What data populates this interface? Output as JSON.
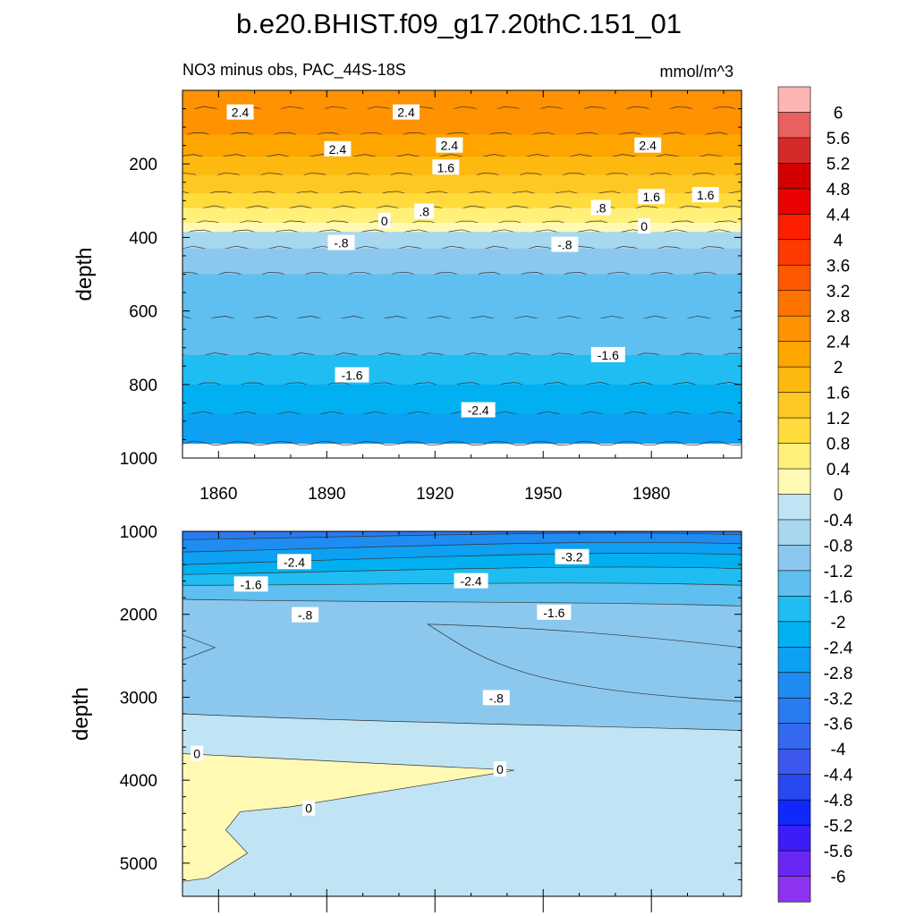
{
  "title": "b.e20.BHIST.f09_g17.20thC.151_01",
  "subtitle_left": "NO3 minus obs, PAC_44S-18S",
  "subtitle_right": "mmol/m^3",
  "chart_data": [
    {
      "type": "heatmap",
      "panel": "upper",
      "xlabel": "",
      "ylabel": "depth",
      "xlim": [
        1850,
        2005
      ],
      "ylim": [
        1000,
        0
      ],
      "x_ticks": [
        "1860",
        "1890",
        "1920",
        "1950",
        "1980"
      ],
      "y_ticks": [
        "200",
        "400",
        "600",
        "800",
        "1000"
      ],
      "bands": [
        {
          "depth": 50,
          "value": 2.6
        },
        {
          "depth": 120,
          "value": 2.4
        },
        {
          "depth": 180,
          "value": 2.2
        },
        {
          "depth": 230,
          "value": 1.8
        },
        {
          "depth": 280,
          "value": 1.4
        },
        {
          "depth": 320,
          "value": 1.0
        },
        {
          "depth": 360,
          "value": 0.6
        },
        {
          "depth": 385,
          "value": 0.2
        },
        {
          "depth": 430,
          "value": -0.6
        },
        {
          "depth": 500,
          "value": -1.0
        },
        {
          "depth": 620,
          "value": -1.3
        },
        {
          "depth": 720,
          "value": -1.6
        },
        {
          "depth": 800,
          "value": -1.9
        },
        {
          "depth": 880,
          "value": -2.2
        },
        {
          "depth": 960,
          "value": -2.6
        }
      ],
      "contour_labels": [
        {
          "text": "2.4",
          "x": 1866,
          "depth": 60
        },
        {
          "text": "2.4",
          "x": 1912,
          "depth": 60
        },
        {
          "text": "2.4",
          "x": 1893,
          "depth": 160
        },
        {
          "text": "2.4",
          "x": 1924,
          "depth": 150
        },
        {
          "text": "2.4",
          "x": 1979,
          "depth": 150
        },
        {
          "text": "1.6",
          "x": 1923,
          "depth": 210
        },
        {
          "text": "1.6",
          "x": 1980,
          "depth": 290
        },
        {
          "text": "1.6",
          "x": 1995,
          "depth": 285
        },
        {
          "text": ".8",
          "x": 1917,
          "depth": 330
        },
        {
          "text": ".8",
          "x": 1966,
          "depth": 320
        },
        {
          "text": "0",
          "x": 1906,
          "depth": 355
        },
        {
          "text": "0",
          "x": 1978,
          "depth": 370
        },
        {
          "text": "-.8",
          "x": 1894,
          "depth": 415
        },
        {
          "text": "-.8",
          "x": 1956,
          "depth": 420
        },
        {
          "text": "-1.6",
          "x": 1968,
          "depth": 720
        },
        {
          "text": "-1.6",
          "x": 1897,
          "depth": 775
        },
        {
          "text": "-2.4",
          "x": 1932,
          "depth": 870
        }
      ]
    },
    {
      "type": "heatmap",
      "panel": "lower",
      "xlabel": "",
      "ylabel": "depth",
      "xlim": [
        1850,
        2005
      ],
      "ylim": [
        5400,
        1000
      ],
      "y_ticks": [
        "1000",
        "2000",
        "3000",
        "4000",
        "5000"
      ],
      "contour_labels": [
        {
          "text": "-2.4",
          "x": 1881,
          "depth": 1370
        },
        {
          "text": "-1.6",
          "x": 1869,
          "depth": 1640
        },
        {
          "text": "-2.4",
          "x": 1930,
          "depth": 1600
        },
        {
          "text": "-3.2",
          "x": 1958,
          "depth": 1310
        },
        {
          "text": "-1.6",
          "x": 1953,
          "depth": 1980
        },
        {
          "text": "-.8",
          "x": 1884,
          "depth": 2010
        },
        {
          "text": "-.8",
          "x": 1937,
          "depth": 3010
        },
        {
          "text": "0",
          "x": 1854,
          "depth": 3680
        },
        {
          "text": "0",
          "x": 1938,
          "depth": 3870
        },
        {
          "text": "0",
          "x": 1885,
          "depth": 4340
        }
      ]
    }
  ],
  "colorbar": {
    "labels": [
      "6",
      "5.6",
      "5.2",
      "4.8",
      "4.4",
      "4",
      "3.6",
      "3.2",
      "2.8",
      "2.4",
      "2",
      "1.6",
      "1.2",
      "0.8",
      "0.4",
      "0",
      "-0.4",
      "-0.8",
      "-1.2",
      "-1.6",
      "-2",
      "-2.4",
      "-2.8",
      "-3.2",
      "-3.6",
      "-4",
      "-4.4",
      "-4.8",
      "-5.2",
      "-5.6",
      "-6"
    ],
    "colors": [
      "#ffb4b4",
      "#e86060",
      "#d42a2a",
      "#d20000",
      "#ea0000",
      "#ff1e00",
      "#ff3a00",
      "#ff5800",
      "#ff7400",
      "#fe9200",
      "#fea500",
      "#feb910",
      "#fec824",
      "#ffdb3c",
      "#fff07a",
      "#fff9b4",
      "#c0e4f4",
      "#a8d8f0",
      "#8cc8ee",
      "#5ebff0",
      "#20bdf2",
      "#00b0f0",
      "#0ea0f2",
      "#1e8cf0",
      "#2a7af0",
      "#3468f0",
      "#3c58ec",
      "#2848f0",
      "#1028fa",
      "#3c1cf8",
      "#6a28f4",
      "#8c34f0"
    ]
  }
}
